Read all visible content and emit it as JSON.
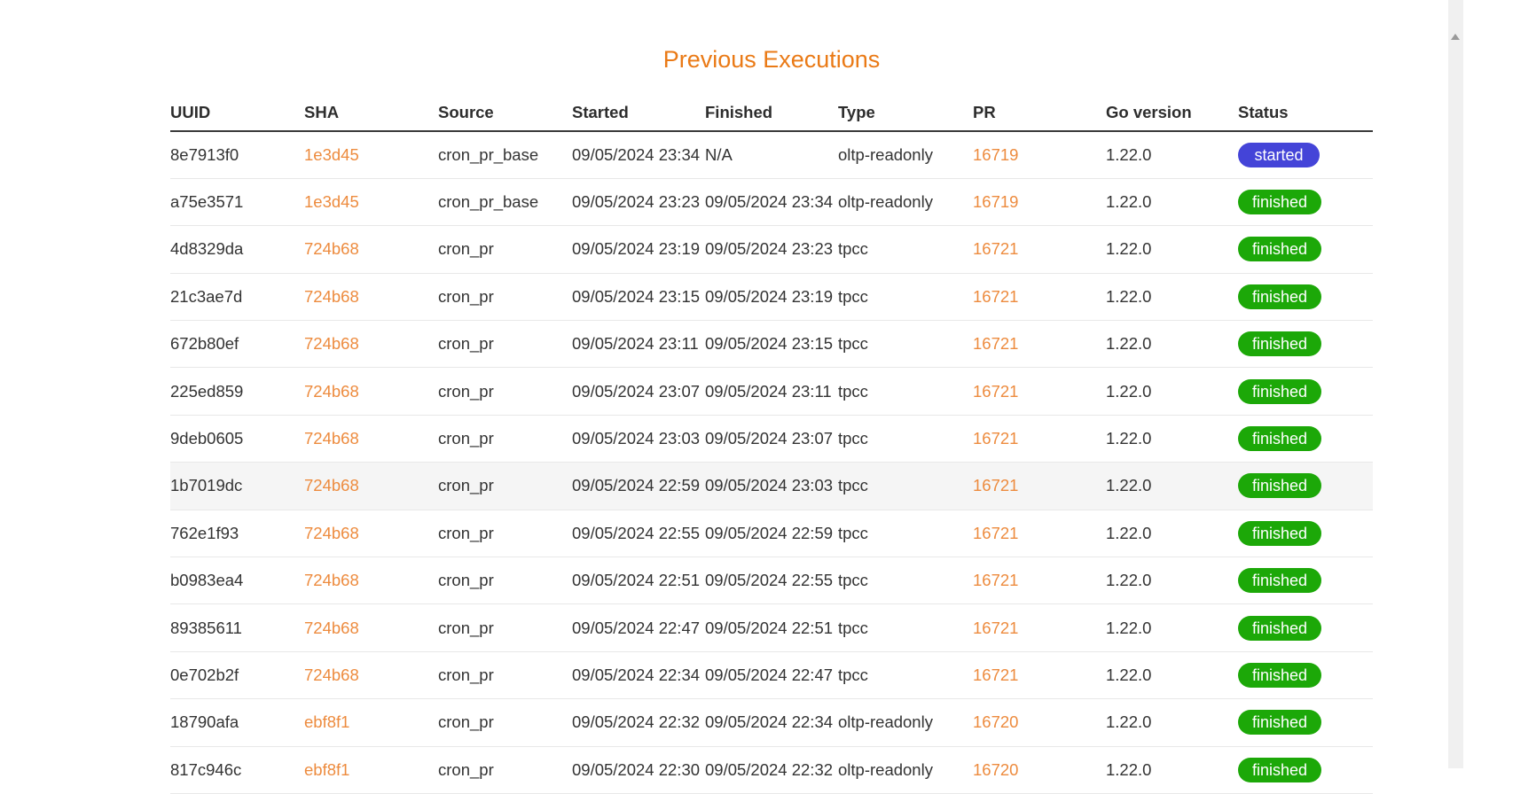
{
  "title": "Previous Executions",
  "colors": {
    "title": "#ea7a16",
    "link": "#ed8b3e",
    "status_started": "#4444d8",
    "status_finished": "#1ca808",
    "highlight_row": "#f5f5f5"
  },
  "table": {
    "headers": [
      "UUID",
      "SHA",
      "Source",
      "Started",
      "Finished",
      "Type",
      "PR",
      "Go version",
      "Status"
    ],
    "rows": [
      {
        "uuid": "8e7913f0",
        "sha": "1e3d45",
        "source": "cron_pr_base",
        "started": "09/05/2024 23:34",
        "finished": "N/A",
        "type": "oltp-readonly",
        "pr": "16719",
        "go_version": "1.22.0",
        "status": "started",
        "highlighted": false
      },
      {
        "uuid": "a75e3571",
        "sha": "1e3d45",
        "source": "cron_pr_base",
        "started": "09/05/2024 23:23",
        "finished": "09/05/2024 23:34",
        "type": "oltp-readonly",
        "pr": "16719",
        "go_version": "1.22.0",
        "status": "finished",
        "highlighted": false
      },
      {
        "uuid": "4d8329da",
        "sha": "724b68",
        "source": "cron_pr",
        "started": "09/05/2024 23:19",
        "finished": "09/05/2024 23:23",
        "type": "tpcc",
        "pr": "16721",
        "go_version": "1.22.0",
        "status": "finished",
        "highlighted": false
      },
      {
        "uuid": "21c3ae7d",
        "sha": "724b68",
        "source": "cron_pr",
        "started": "09/05/2024 23:15",
        "finished": "09/05/2024 23:19",
        "type": "tpcc",
        "pr": "16721",
        "go_version": "1.22.0",
        "status": "finished",
        "highlighted": false
      },
      {
        "uuid": "672b80ef",
        "sha": "724b68",
        "source": "cron_pr",
        "started": "09/05/2024 23:11",
        "finished": "09/05/2024 23:15",
        "type": "tpcc",
        "pr": "16721",
        "go_version": "1.22.0",
        "status": "finished",
        "highlighted": false
      },
      {
        "uuid": "225ed859",
        "sha": "724b68",
        "source": "cron_pr",
        "started": "09/05/2024 23:07",
        "finished": "09/05/2024 23:11",
        "type": "tpcc",
        "pr": "16721",
        "go_version": "1.22.0",
        "status": "finished",
        "highlighted": false
      },
      {
        "uuid": "9deb0605",
        "sha": "724b68",
        "source": "cron_pr",
        "started": "09/05/2024 23:03",
        "finished": "09/05/2024 23:07",
        "type": "tpcc",
        "pr": "16721",
        "go_version": "1.22.0",
        "status": "finished",
        "highlighted": false
      },
      {
        "uuid": "1b7019dc",
        "sha": "724b68",
        "source": "cron_pr",
        "started": "09/05/2024 22:59",
        "finished": "09/05/2024 23:03",
        "type": "tpcc",
        "pr": "16721",
        "go_version": "1.22.0",
        "status": "finished",
        "highlighted": true
      },
      {
        "uuid": "762e1f93",
        "sha": "724b68",
        "source": "cron_pr",
        "started": "09/05/2024 22:55",
        "finished": "09/05/2024 22:59",
        "type": "tpcc",
        "pr": "16721",
        "go_version": "1.22.0",
        "status": "finished",
        "highlighted": false
      },
      {
        "uuid": "b0983ea4",
        "sha": "724b68",
        "source": "cron_pr",
        "started": "09/05/2024 22:51",
        "finished": "09/05/2024 22:55",
        "type": "tpcc",
        "pr": "16721",
        "go_version": "1.22.0",
        "status": "finished",
        "highlighted": false
      },
      {
        "uuid": "89385611",
        "sha": "724b68",
        "source": "cron_pr",
        "started": "09/05/2024 22:47",
        "finished": "09/05/2024 22:51",
        "type": "tpcc",
        "pr": "16721",
        "go_version": "1.22.0",
        "status": "finished",
        "highlighted": false
      },
      {
        "uuid": "0e702b2f",
        "sha": "724b68",
        "source": "cron_pr",
        "started": "09/05/2024 22:34",
        "finished": "09/05/2024 22:47",
        "type": "tpcc",
        "pr": "16721",
        "go_version": "1.22.0",
        "status": "finished",
        "highlighted": false
      },
      {
        "uuid": "18790afa",
        "sha": "ebf8f1",
        "source": "cron_pr",
        "started": "09/05/2024 22:32",
        "finished": "09/05/2024 22:34",
        "type": "oltp-readonly",
        "pr": "16720",
        "go_version": "1.22.0",
        "status": "finished",
        "highlighted": false
      },
      {
        "uuid": "817c946c",
        "sha": "ebf8f1",
        "source": "cron_pr",
        "started": "09/05/2024 22:30",
        "finished": "09/05/2024 22:32",
        "type": "oltp-readonly",
        "pr": "16720",
        "go_version": "1.22.0",
        "status": "finished",
        "highlighted": false
      }
    ]
  },
  "scrollbar": {
    "up_arrow_icon": "scroll-up-arrow"
  }
}
